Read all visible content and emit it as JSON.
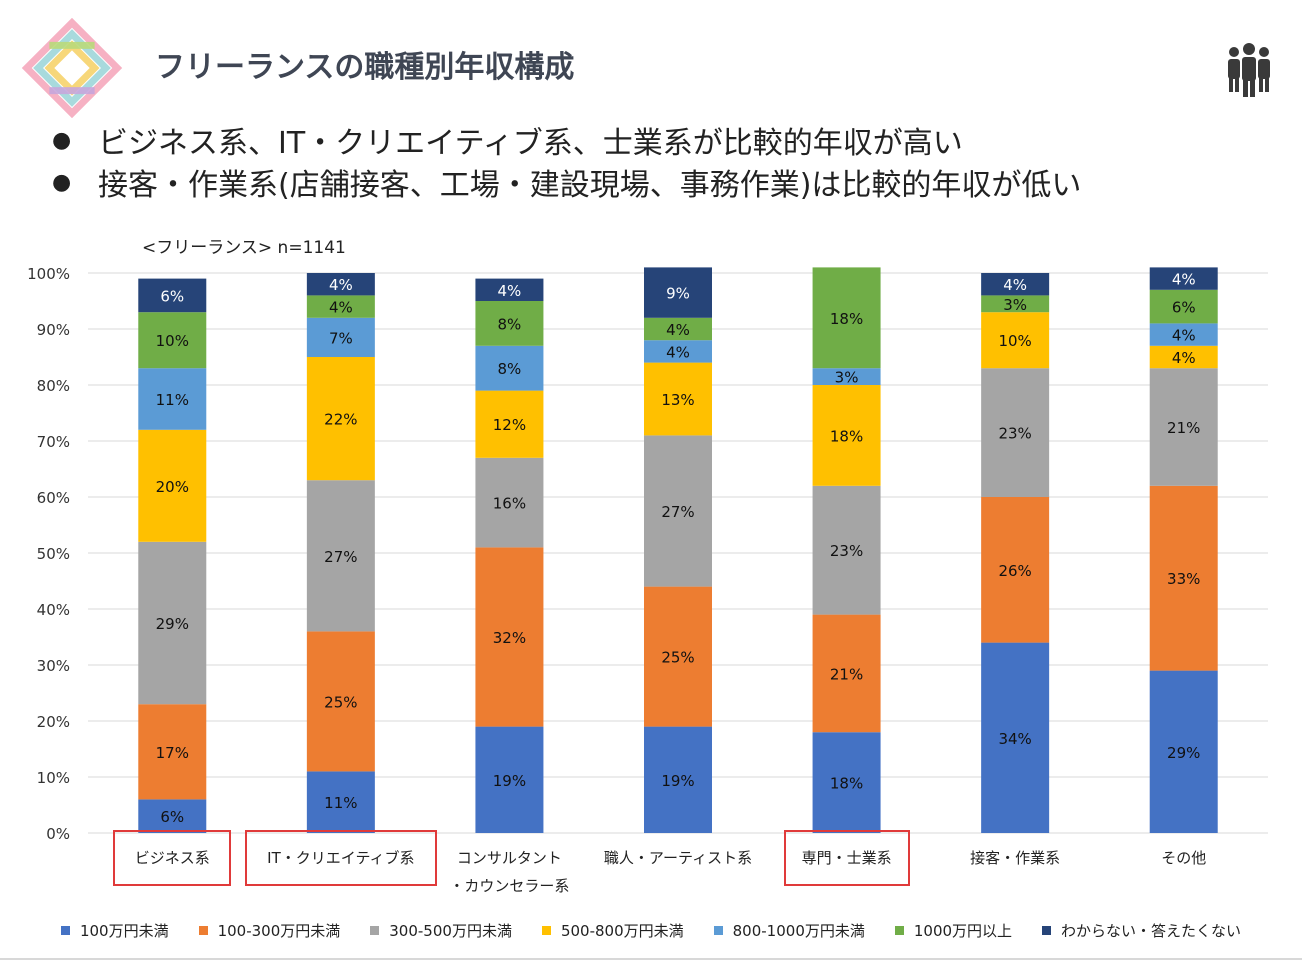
{
  "header": {
    "title": "フリーランスの職種別年収構成",
    "logo_icon": "colorful-square-frame-logo",
    "people_icon": "people-group-icon"
  },
  "bullets": [
    "ビジネス系、IT・クリエイティブ系、士業系が比較的年収が高い",
    "接客・作業系(店舗接客、工場・建設現場、事務作業)は比較的年収が低い"
  ],
  "sample_label": "<フリーランス> n=1141",
  "chart_data": {
    "type": "bar",
    "stacked": true,
    "normalized": true,
    "categories": [
      "ビジネス系",
      "IT・クリエイティブ系",
      "コンサルタント・カウンセラー系",
      "職人・アーティスト系",
      "専門・士業系",
      "接客・作業系",
      "その他"
    ],
    "category_label_lines": [
      [
        "ビジネス系"
      ],
      [
        "IT・クリエイティブ系"
      ],
      [
        "コンサルタント",
        "・カウンセラー系"
      ],
      [
        "職人・アーティスト系"
      ],
      [
        "専門・士業系"
      ],
      [
        "接客・作業系"
      ],
      [
        "その他"
      ]
    ],
    "highlighted_categories": [
      "ビジネス系",
      "IT・クリエイティブ系",
      "専門・士業系"
    ],
    "ylim": [
      0,
      100
    ],
    "yticks": [
      "0%",
      "10%",
      "20%",
      "30%",
      "40%",
      "50%",
      "60%",
      "70%",
      "80%",
      "90%",
      "100%"
    ],
    "grid": true,
    "legend_position": "bottom",
    "series": [
      {
        "name": "100万円未満",
        "color": "#4472c4",
        "values": [
          6,
          11,
          19,
          19,
          18,
          34,
          29
        ]
      },
      {
        "name": "100-300万円未満",
        "color": "#ed7d31",
        "values": [
          17,
          25,
          32,
          25,
          21,
          26,
          33
        ]
      },
      {
        "name": "300-500万円未満",
        "color": "#a5a5a5",
        "values": [
          29,
          27,
          16,
          27,
          23,
          23,
          21
        ]
      },
      {
        "name": "500-800万円未満",
        "color": "#ffc000",
        "values": [
          20,
          22,
          12,
          13,
          18,
          10,
          4
        ]
      },
      {
        "name": "800-1000万円未満",
        "color": "#5b9bd5",
        "values": [
          11,
          7,
          8,
          4,
          3,
          0,
          4
        ]
      },
      {
        "name": "1000万円以上",
        "color": "#70ad47",
        "values": [
          10,
          4,
          8,
          4,
          18,
          3,
          6
        ]
      },
      {
        "name": "わからない・答えたくない",
        "color": "#264478",
        "values": [
          6,
          4,
          4,
          9,
          0,
          4,
          4
        ]
      }
    ]
  }
}
